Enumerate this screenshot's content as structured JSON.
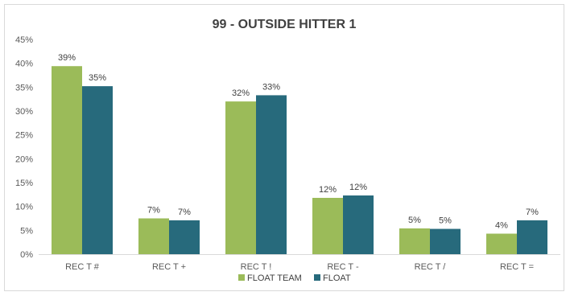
{
  "chart_data": {
    "type": "bar",
    "title": "99 - OUTSIDE HITTER 1",
    "xlabel": "",
    "ylabel": "",
    "categories": [
      "REC T #",
      "REC T +",
      "REC T !",
      "REC T -",
      "REC T /",
      "REC T ="
    ],
    "series": [
      {
        "name": "FLOAT TEAM",
        "color": "#9bbb59",
        "values": [
          0.394,
          0.075,
          0.32,
          0.118,
          0.054,
          0.043
        ],
        "labels": [
          "39%",
          "7%",
          "32%",
          "12%",
          "5%",
          "4%"
        ]
      },
      {
        "name": "FLOAT",
        "color": "#276a7c",
        "values": [
          0.352,
          0.071,
          0.333,
          0.123,
          0.053,
          0.071
        ],
        "labels": [
          "35%",
          "7%",
          "33%",
          "12%",
          "5%",
          "7%"
        ]
      }
    ],
    "ylim": [
      0,
      0.45
    ],
    "yticks": [
      0,
      0.05,
      0.1,
      0.15,
      0.2,
      0.25,
      0.3,
      0.35,
      0.4,
      0.45
    ],
    "ytick_labels": [
      "0%",
      "5%",
      "10%",
      "15%",
      "20%",
      "25%",
      "30%",
      "35%",
      "40%",
      "45%"
    ],
    "grid": false,
    "legend_position": "bottom"
  }
}
